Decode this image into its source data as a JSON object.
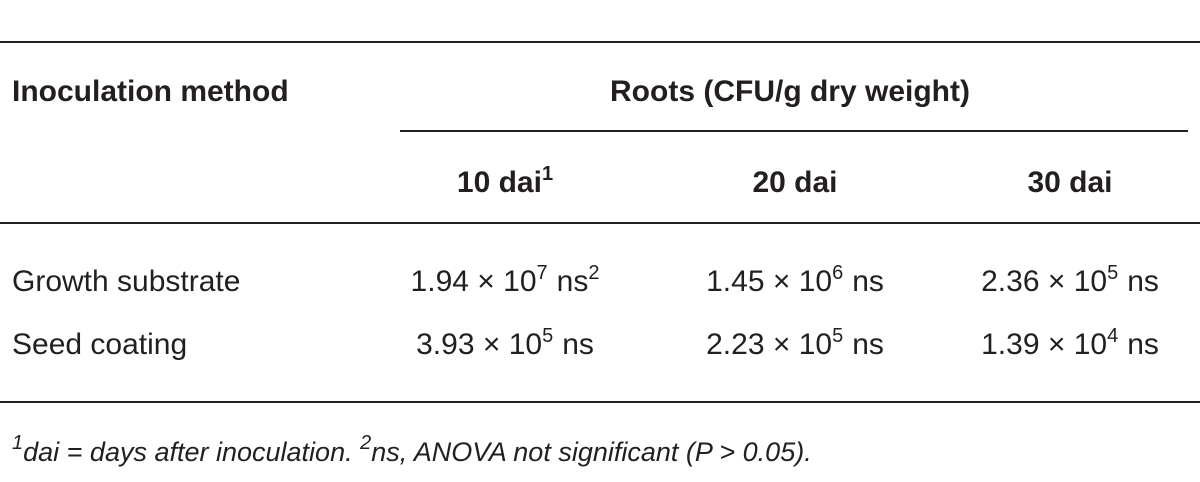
{
  "table": {
    "header": {
      "stub": "Inoculation method",
      "group": "Roots (CFU/g dry weight)",
      "columns": [
        {
          "text": "10 dai",
          "sup": "1"
        },
        {
          "text": "20 dai"
        },
        {
          "text": "30 dai"
        }
      ]
    },
    "rows": [
      {
        "label": "Growth substrate",
        "cells": [
          {
            "base": "1.94 × 10",
            "exp": "7",
            "suffix": "ns",
            "sup": "2"
          },
          {
            "base": "1.45 × 10",
            "exp": "6",
            "suffix": "ns"
          },
          {
            "base": "2.36 × 10",
            "exp": "5",
            "suffix": "ns"
          }
        ]
      },
      {
        "label": "Seed coating",
        "cells": [
          {
            "base": "3.93 × 10",
            "exp": "5",
            "suffix": "ns"
          },
          {
            "base": "2.23 × 10",
            "exp": "5",
            "suffix": "ns"
          },
          {
            "base": "1.39 × 10",
            "exp": "4",
            "suffix": "ns"
          }
        ]
      }
    ],
    "footnotes": [
      {
        "mark": "1",
        "text": "dai = days after inoculation."
      },
      {
        "mark": "2",
        "text": "ns, ANOVA not significant (P > 0.05)."
      }
    ]
  }
}
